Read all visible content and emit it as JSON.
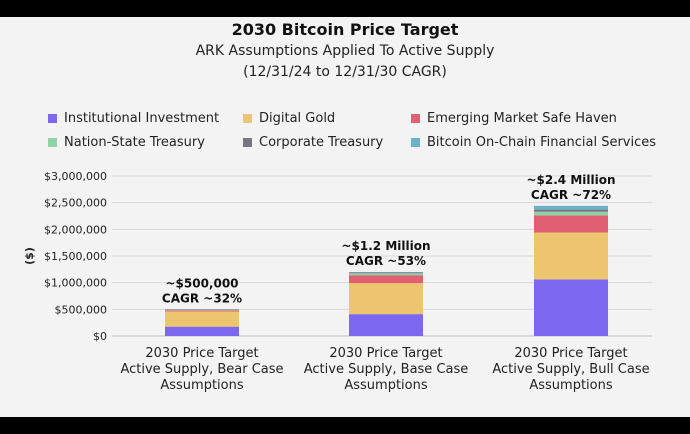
{
  "title": "2030 Bitcoin Price Target",
  "subtitle_line1": "ARK Assumptions Applied To Active Supply",
  "subtitle_line2": "(12/31/24 to 12/31/30 CAGR)",
  "chart_data": {
    "type": "bar",
    "stacked": true,
    "ylabel": "($)",
    "xlabel": "",
    "ylim": [
      0,
      3000000
    ],
    "yticks": [
      0,
      500000,
      1000000,
      1500000,
      2000000,
      2500000,
      3000000
    ],
    "ytick_labels": [
      "$0",
      "$500,000",
      "$1,000,000",
      "$1,500,000",
      "$2,000,000",
      "$2,500,000",
      "$3,000,000"
    ],
    "grid": true,
    "legend_position": "top",
    "categories": [
      "2030 Price Target Active Supply, Bear Case Assumptions",
      "2030 Price Target Active Supply, Base Case Assumptions",
      "2030 Price Target Active Supply, Bull Case Assumptions"
    ],
    "category_lines": [
      [
        "2030 Price Target",
        "Active Supply, Bear Case",
        "Assumptions"
      ],
      [
        "2030 Price Target",
        "Active Supply, Base Case",
        "Assumptions"
      ],
      [
        "2030 Price Target",
        "Active Supply, Bull Case",
        "Assumptions"
      ]
    ],
    "series": [
      {
        "name": "Institutional Investment",
        "color": "#7b68ee",
        "values": [
          175000,
          410000,
          1060000
        ]
      },
      {
        "name": "Digital Gold",
        "color": "#edc56e",
        "values": [
          285000,
          580000,
          880000
        ]
      },
      {
        "name": "Emerging Market Safe Haven",
        "color": "#e06072",
        "values": [
          20000,
          150000,
          320000
        ]
      },
      {
        "name": "Nation-State Treasury",
        "color": "#8fd3a5",
        "values": [
          10000,
          35000,
          70000
        ]
      },
      {
        "name": "Corporate Treasury",
        "color": "#76777e",
        "values": [
          10000,
          15000,
          40000
        ]
      },
      {
        "name": "Bitcoin On-Chain Financial Services",
        "color": "#6ab2cc",
        "values": [
          0,
          10000,
          70000
        ]
      }
    ],
    "annotations": [
      {
        "line1": "~$500,000",
        "line2": "CAGR ~32%"
      },
      {
        "line1": "~$1.2 Million",
        "line2": "CAGR ~53%"
      },
      {
        "line1": "~$2.4 Million",
        "line2": "CAGR ~72%"
      }
    ]
  }
}
